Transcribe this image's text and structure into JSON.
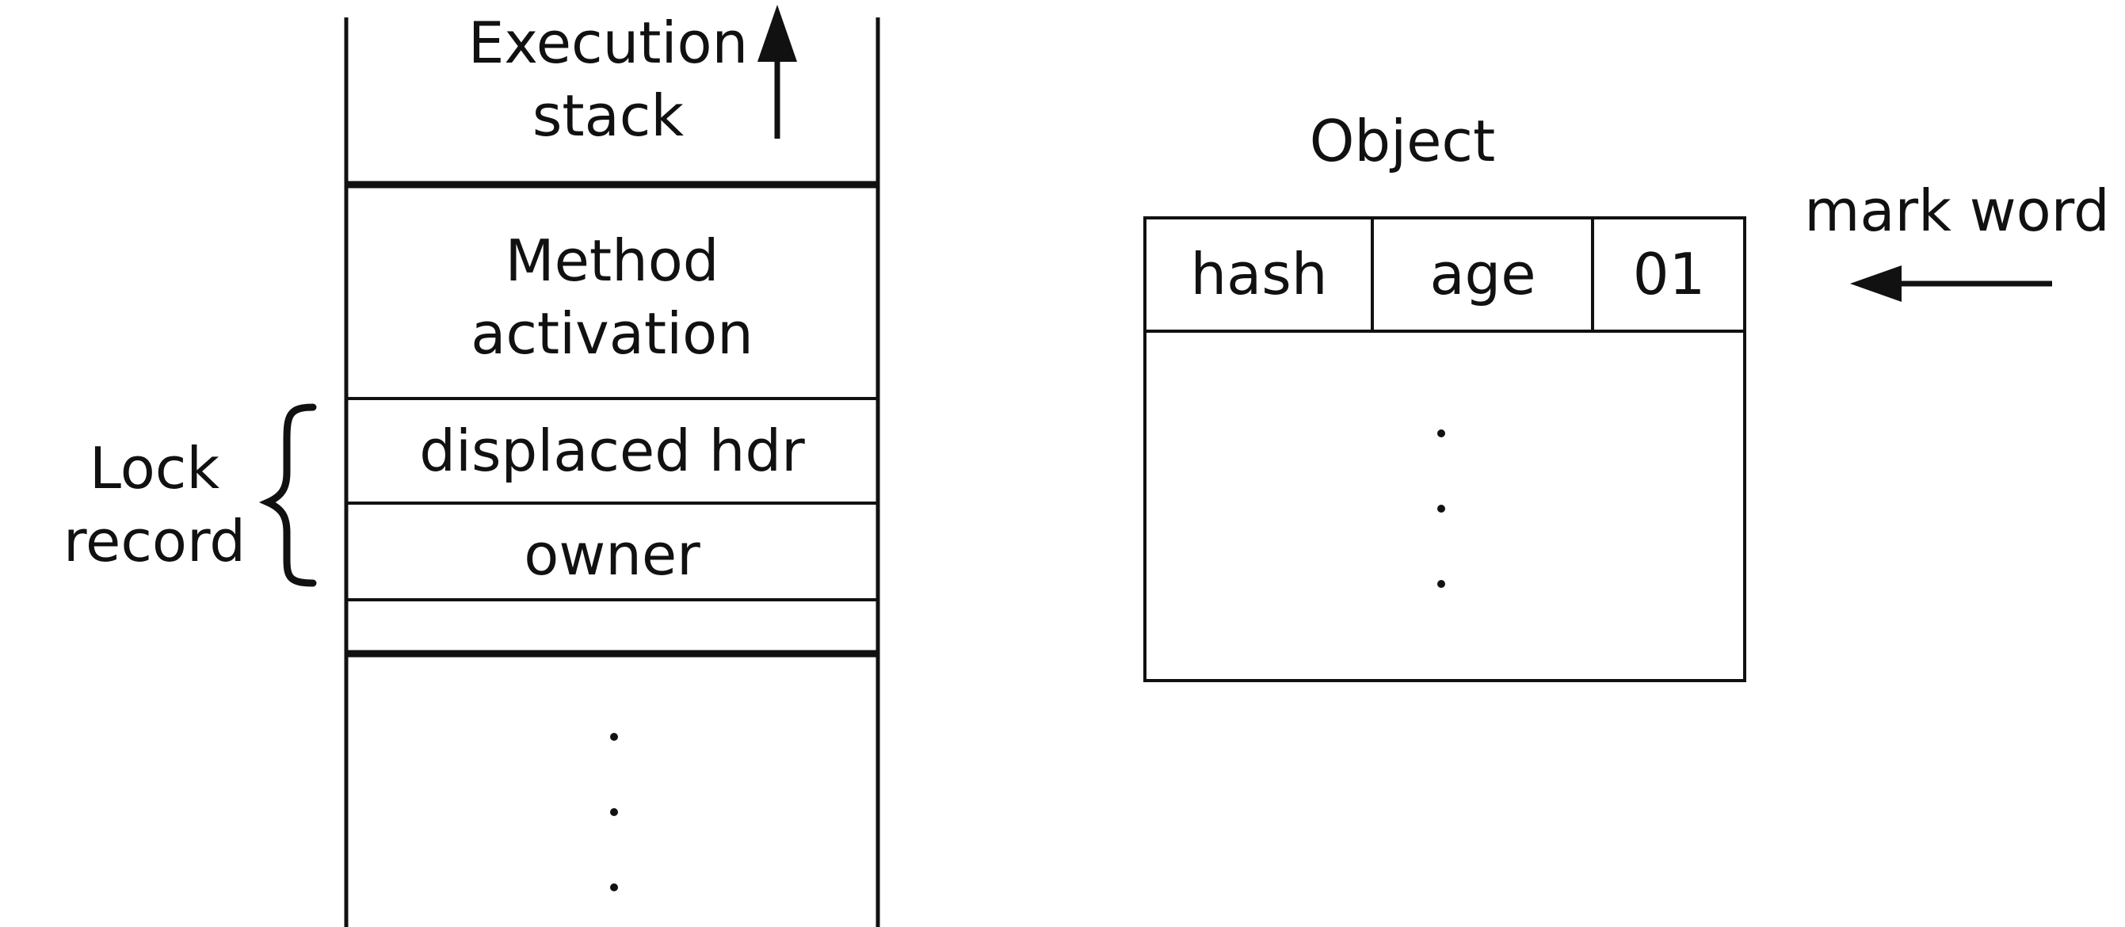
{
  "stack": {
    "title_line1": "Execution",
    "title_line2": "stack",
    "method_line1": "Method",
    "method_line2": "activation",
    "displaced_hdr": "displaced hdr",
    "owner": "owner"
  },
  "lock_record": {
    "line1": "Lock",
    "line2": "record"
  },
  "object": {
    "title": "Object",
    "fields": [
      "hash",
      "age",
      "01"
    ],
    "pointer_label": "mark word"
  },
  "colors": {
    "ink": "#111111",
    "background": "#ffffff"
  }
}
